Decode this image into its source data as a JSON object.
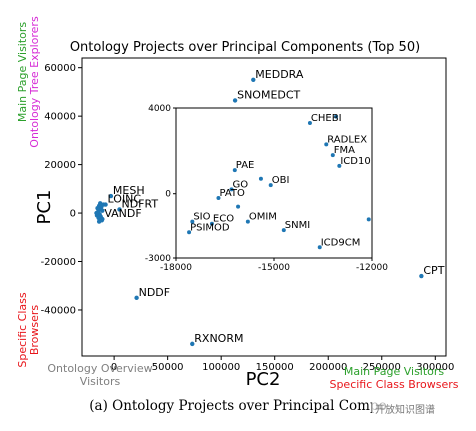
{
  "chart_data": {
    "type": "scatter",
    "title": "Ontology Projects over Principal Components (Top 50)",
    "xlabel": "PC2",
    "ylabel": "PC1",
    "xlim": [
      -30000,
      310000
    ],
    "ylim": [
      -59000,
      64000
    ],
    "xticks": [
      "0",
      "50000",
      "100000",
      "150000",
      "200000",
      "250000",
      "300000"
    ],
    "yticks": [
      "-40000",
      "-20000",
      "0",
      "20000",
      "40000",
      "60000"
    ],
    "point_color": "#1f77b4",
    "labeled_points": [
      {
        "label": "MEDDRA",
        "x": 130000,
        "y": 55000
      },
      {
        "label": "SNOMEDCT",
        "x": 113000,
        "y": 46500
      },
      {
        "label": "MESH",
        "x": -3000,
        "y": 7000
      },
      {
        "label": "LOINC",
        "x": -8000,
        "y": 3500
      },
      {
        "label": "NDFRT",
        "x": 5000,
        "y": 1500
      },
      {
        "label": "VANDF",
        "x": -11000,
        "y": -2500
      },
      {
        "label": "NDDF",
        "x": 21000,
        "y": -35000
      },
      {
        "label": "RXNORM",
        "x": 73000,
        "y": -54000
      },
      {
        "label": "CPT",
        "x": 287000,
        "y": -26000
      }
    ],
    "cluster_points": [
      {
        "x": -14000,
        "y": 3000
      },
      {
        "x": -12500,
        "y": 1500
      },
      {
        "x": -15000,
        "y": 500
      },
      {
        "x": -13500,
        "y": -500
      },
      {
        "x": -16000,
        "y": -1000
      },
      {
        "x": -12000,
        "y": 2500
      },
      {
        "x": -14500,
        "y": -2000
      },
      {
        "x": -13000,
        "y": 4000
      },
      {
        "x": -11000,
        "y": 1000
      },
      {
        "x": -15500,
        "y": 2000
      },
      {
        "x": -10000,
        "y": 3500
      },
      {
        "x": -16500,
        "y": 0
      },
      {
        "x": -12500,
        "y": -1500
      },
      {
        "x": -14000,
        "y": -3500
      },
      {
        "x": -11500,
        "y": -3000
      }
    ],
    "inset": {
      "xlim": [
        -18000,
        -12000
      ],
      "ylim": [
        -3000,
        4000
      ],
      "xticks": [
        "-18000",
        "-15000",
        "-12000"
      ],
      "yticks": [
        "-3000",
        "0",
        "4000"
      ],
      "labeled_points": [
        {
          "label": "CHEBI",
          "x": -13900,
          "y": 3300
        },
        {
          "label": "RADLEX",
          "x": -13400,
          "y": 2300
        },
        {
          "label": "FMA",
          "x": -13200,
          "y": 1800
        },
        {
          "label": "ICD10",
          "x": -13000,
          "y": 1300
        },
        {
          "label": "PAE",
          "x": -16200,
          "y": 1100
        },
        {
          "label": "GO",
          "x": -16300,
          "y": 200
        },
        {
          "label": "OBI",
          "x": -15100,
          "y": 400
        },
        {
          "label": "PATO",
          "x": -16700,
          "y": -200
        },
        {
          "label": "SIO",
          "x": -17500,
          "y": -1300
        },
        {
          "label": "ECO",
          "x": -16900,
          "y": -1400
        },
        {
          "label": "OMIM",
          "x": -15800,
          "y": -1300
        },
        {
          "label": "PSIMOD",
          "x": -17600,
          "y": -1800
        },
        {
          "label": "SNMI",
          "x": -14700,
          "y": -1700
        },
        {
          "label": "ICD9CM",
          "x": -13600,
          "y": -2500
        }
      ],
      "extra_points": [
        {
          "x": -13100,
          "y": 3600
        },
        {
          "x": -12100,
          "y": -1200
        },
        {
          "x": -15400,
          "y": 700
        },
        {
          "x": -16100,
          "y": -600
        }
      ]
    },
    "annotations": {
      "left_top": [
        "Main Page Visitors",
        "Ontology Tree Explorers"
      ],
      "left_bottom": [
        "Specific Class",
        "Browsers"
      ],
      "bottom_left": [
        "Ontology Overview",
        "Visitors"
      ],
      "bottom_right": [
        "Main Page Visitors",
        "Specific Class Browsers"
      ]
    },
    "annotation_colors": {
      "main_page": "#2ca02c",
      "tree": "#d62ad6",
      "specific": "#e8161b",
      "overview": "#808080"
    }
  },
  "caption": "(a) Ontology Projects over Principal Compo",
  "watermark": "开放知识图谱"
}
